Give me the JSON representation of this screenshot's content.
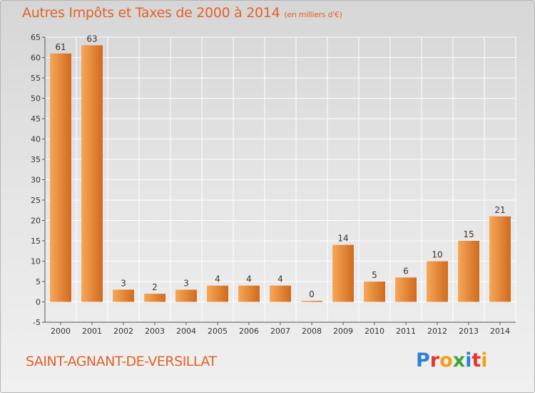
{
  "title": {
    "main": "Autres Impôts et Taxes de 2000 à 2014",
    "unit": "(en milliers d'€)"
  },
  "commune": "SAINT-AGNANT-DE-VERSILLAT",
  "logo": {
    "text": "Proxiti",
    "letters": [
      {
        "ch": "P",
        "color": "#2f7fd4"
      },
      {
        "ch": "r",
        "color": "#e8352c"
      },
      {
        "ch": "o",
        "color": "#f1a01a"
      },
      {
        "ch": "x",
        "color": "#3aa63a"
      },
      {
        "ch": "i",
        "color": "#2f7fd4"
      },
      {
        "ch": "t",
        "color": "#e8352c"
      },
      {
        "ch": "i",
        "color": "#f1a01a"
      }
    ]
  },
  "colors": {
    "bar_light": "#f6a758",
    "bar_dark": "#d06a1e",
    "text_accent": "#e2622b"
  },
  "chart_data": {
    "type": "bar",
    "categories": [
      "2000",
      "2001",
      "2002",
      "2003",
      "2004",
      "2005",
      "2006",
      "2007",
      "2008",
      "2009",
      "2010",
      "2011",
      "2012",
      "2013",
      "2014"
    ],
    "values": [
      61,
      63,
      3,
      2,
      3,
      4,
      4,
      4,
      0,
      14,
      5,
      6,
      10,
      15,
      21
    ],
    "ylim": [
      -5,
      65
    ],
    "yticks": [
      -5,
      0,
      5,
      10,
      15,
      20,
      25,
      30,
      35,
      40,
      45,
      50,
      55,
      60,
      65
    ],
    "grid": true
  }
}
